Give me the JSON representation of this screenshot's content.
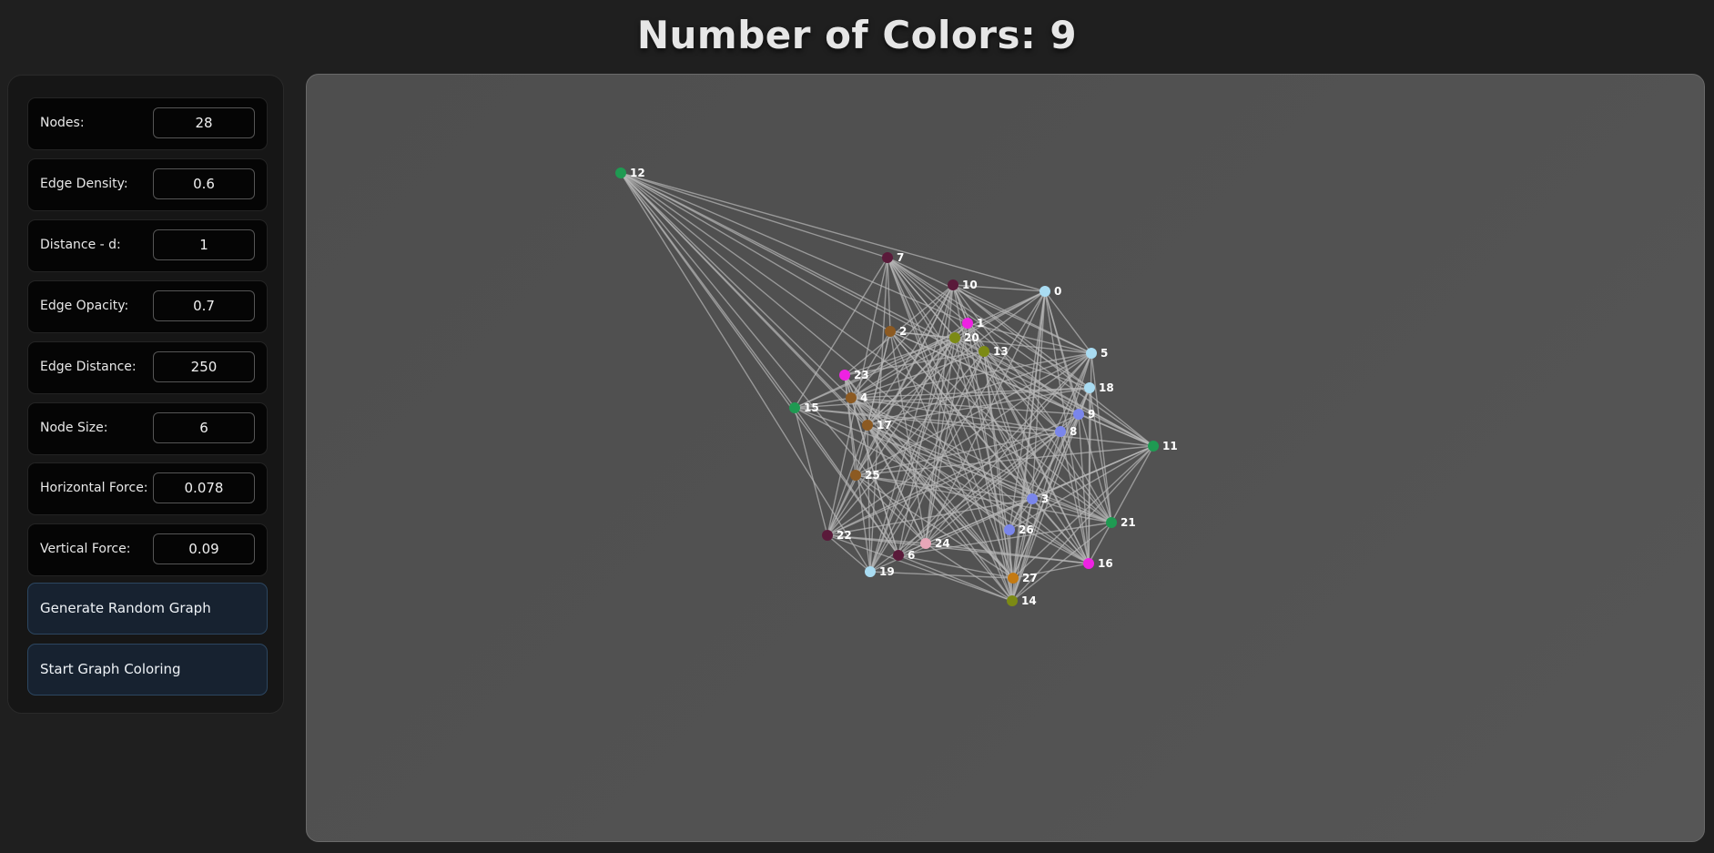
{
  "header": {
    "title": "Number of Colors: 9"
  },
  "controls": {
    "fields": [
      {
        "label": "Nodes:",
        "value": "28"
      },
      {
        "label": "Edge Density:",
        "value": "0.6"
      },
      {
        "label": "Distance - d:",
        "value": "1"
      },
      {
        "label": "Edge Opacity:",
        "value": "0.7"
      },
      {
        "label": "Edge Distance:",
        "value": "250"
      },
      {
        "label": "Node Size:",
        "value": "6"
      },
      {
        "label": "Horizontal Force:",
        "value": "0.078"
      },
      {
        "label": "Vertical Force:",
        "value": "0.09"
      }
    ],
    "buttons": {
      "generate": "Generate Random Graph",
      "start": "Start Graph Coloring"
    }
  },
  "graph": {
    "palette": {
      "green": "#1f9a52",
      "maroon": "#5a1a3a",
      "lightblue": "#a9dcf2",
      "magenta": "#ee22e2",
      "brown": "#8c5a22",
      "olive": "#7c8a14",
      "periwinkle": "#7a86ec",
      "pink": "#e8a6b8",
      "orange": "#c47a12"
    },
    "edge_color": "#b8b8b8",
    "nodes": [
      {
        "label": "0",
        "color": "lightblue"
      },
      {
        "label": "1",
        "color": "magenta"
      },
      {
        "label": "2",
        "color": "brown"
      },
      {
        "label": "3",
        "color": "periwinkle"
      },
      {
        "label": "4",
        "color": "brown"
      },
      {
        "label": "5",
        "color": "lightblue"
      },
      {
        "label": "6",
        "color": "maroon"
      },
      {
        "label": "7",
        "color": "maroon"
      },
      {
        "label": "8",
        "color": "periwinkle"
      },
      {
        "label": "9",
        "color": "periwinkle"
      },
      {
        "label": "10",
        "color": "maroon"
      },
      {
        "label": "11",
        "color": "green"
      },
      {
        "label": "12",
        "color": "green"
      },
      {
        "label": "13",
        "color": "olive"
      },
      {
        "label": "14",
        "color": "olive"
      },
      {
        "label": "15",
        "color": "green"
      },
      {
        "label": "16",
        "color": "magenta"
      },
      {
        "label": "17",
        "color": "brown"
      },
      {
        "label": "18",
        "color": "lightblue"
      },
      {
        "label": "19",
        "color": "lightblue"
      },
      {
        "label": "20",
        "color": "olive"
      },
      {
        "label": "21",
        "color": "green"
      },
      {
        "label": "22",
        "color": "maroon"
      },
      {
        "label": "23",
        "color": "magenta"
      },
      {
        "label": "24",
        "color": "pink"
      },
      {
        "label": "25",
        "color": "brown"
      },
      {
        "label": "26",
        "color": "periwinkle"
      },
      {
        "label": "27",
        "color": "orange"
      }
    ]
  }
}
